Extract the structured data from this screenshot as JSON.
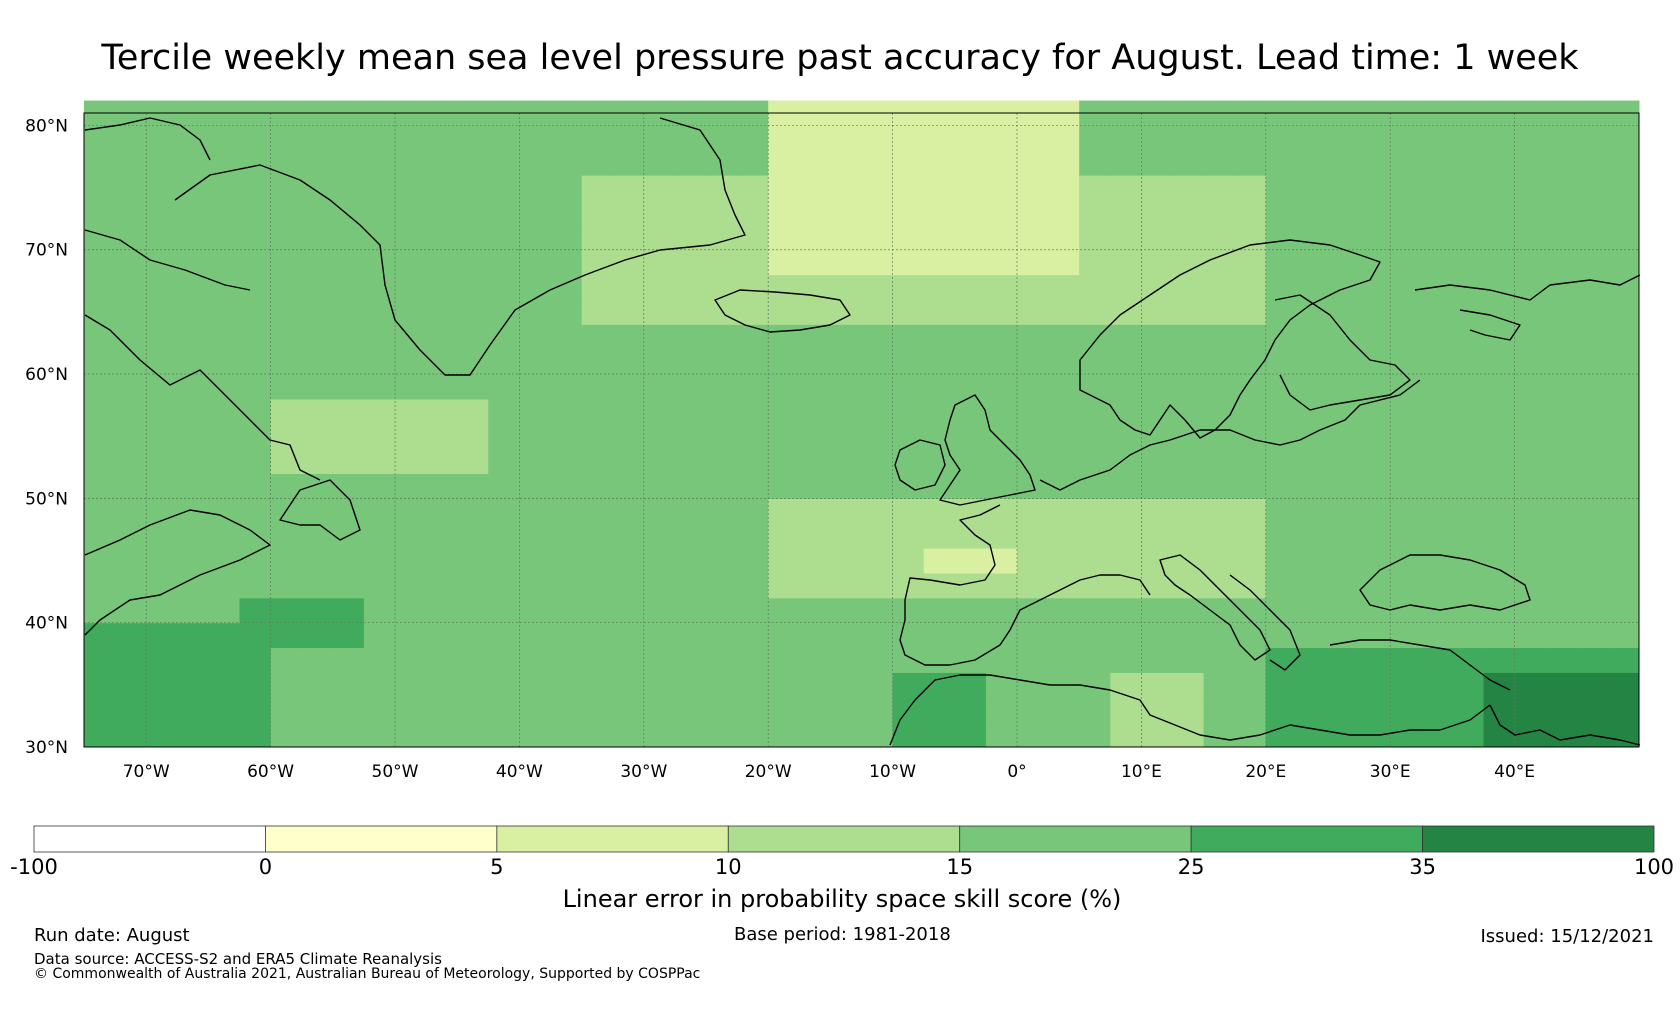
{
  "title": "Tercile weekly mean sea level pressure past accuracy for August. Lead time: 1 week",
  "map": {
    "lat_labels": [
      "80°N",
      "70°N",
      "60°N",
      "50°N",
      "40°N",
      "30°N"
    ],
    "lon_labels": [
      "70°W",
      "60°W",
      "50°W",
      "40°W",
      "30°W",
      "20°W",
      "10°W",
      "0°",
      "10°E",
      "20°E",
      "30°E",
      "40°E"
    ],
    "lon_range": [
      -75,
      50
    ],
    "lat_range": [
      30,
      81
    ]
  },
  "colorbar": {
    "title": "Linear error in probability space skill score (%)",
    "bin_labels": [
      "-100",
      "0",
      "5",
      "10",
      "15",
      "25",
      "35",
      "100"
    ],
    "colors": [
      "#ffffff",
      "#ffffcc",
      "#d9f0a3",
      "#addd8e",
      "#78c679",
      "#41ab5d",
      "#238443"
    ]
  },
  "footer": {
    "run_date": "Run date: August",
    "base_period": "Base period: 1981-2018",
    "issued": "Issued: 15/12/2021",
    "data_source": "Data source: ACCESS-S2 and ERA5 Climate Reanalysis",
    "copyright": "© Commonwealth of Australia 2021, Australian Bureau of Meteorology, Supported by COSPPac"
  }
}
